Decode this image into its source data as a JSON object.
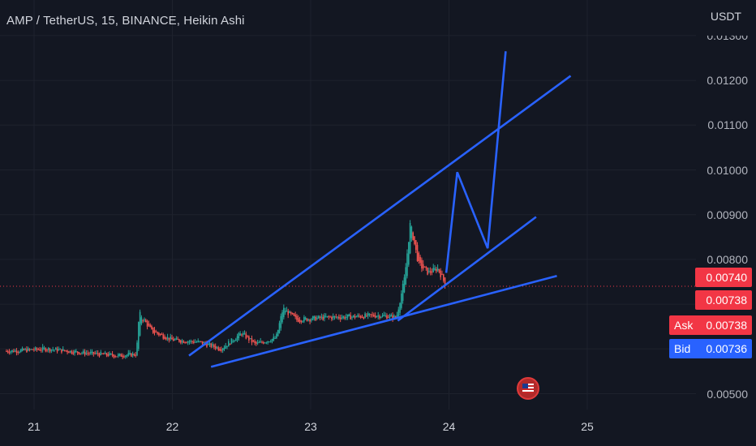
{
  "header": {
    "title": "AMP / TetherUS, 15, BINANCE, Heikin Ashi"
  },
  "axis": {
    "currency": "USDT"
  },
  "price_tags": {
    "last": "0.00740",
    "countdown_price": "0.00738",
    "ask_label": "Ask",
    "ask_value": "0.00738",
    "bid_label": "Bid",
    "bid_value": "0.00736"
  },
  "icons": {
    "event_flag": "us-flag-icon"
  },
  "colors": {
    "background": "#131722",
    "up": "#26a69a",
    "down": "#ef5350",
    "drawing": "#2962ff",
    "ask": "#f23645",
    "bid": "#2962ff"
  },
  "chart_data": {
    "type": "candlestick",
    "chart_style": "Heikin Ashi",
    "symbol": "AMP / TetherUS",
    "interval": "15",
    "exchange": "BINANCE",
    "ylim": [
      0.0047,
      0.013
    ],
    "price_ticks": [
      "0.01300",
      "0.01200",
      "0.01100",
      "0.01000",
      "0.00900",
      "0.00800",
      "0.00500"
    ],
    "date_ticks": [
      "21",
      "22",
      "23",
      "24",
      "25"
    ],
    "xlim": [
      20.8,
      25.2
    ],
    "grid": true,
    "series": [
      {
        "points": [
          [
            20.8,
            0.00595
          ],
          [
            21.1,
            0.006
          ],
          [
            21.4,
            0.0059
          ],
          [
            21.6,
            0.00585
          ],
          [
            21.74,
            0.00588
          ],
          [
            21.76,
            0.0068
          ],
          [
            21.85,
            0.0064
          ],
          [
            22.0,
            0.0062
          ],
          [
            22.2,
            0.00615
          ],
          [
            22.35,
            0.006
          ],
          [
            22.5,
            0.00635
          ],
          [
            22.6,
            0.0061
          ],
          [
            22.75,
            0.00625
          ],
          [
            22.8,
            0.0069
          ],
          [
            22.9,
            0.00665
          ],
          [
            23.1,
            0.0067
          ],
          [
            23.3,
            0.00672
          ],
          [
            23.5,
            0.00675
          ],
          [
            23.62,
            0.0067
          ],
          [
            23.68,
            0.0076
          ],
          [
            23.72,
            0.0088
          ],
          [
            23.78,
            0.0079
          ],
          [
            23.85,
            0.0077
          ],
          [
            23.92,
            0.0078
          ],
          [
            23.98,
            0.0074
          ]
        ]
      }
    ],
    "last_price": 0.0074,
    "drawings": [
      {
        "kind": "trendline",
        "points": [
          [
            22.12,
            0.00585
          ],
          [
            24.88,
            0.0121
          ]
        ]
      },
      {
        "kind": "trendline",
        "points": [
          [
            22.28,
            0.0056
          ],
          [
            24.78,
            0.00763
          ]
        ]
      },
      {
        "kind": "trendline",
        "points": [
          [
            23.63,
            0.00663
          ],
          [
            24.63,
            0.00895
          ]
        ]
      },
      {
        "kind": "path",
        "points": [
          [
            23.98,
            0.0077
          ],
          [
            24.06,
            0.00995
          ],
          [
            24.28,
            0.00825
          ],
          [
            24.41,
            0.01265
          ]
        ]
      }
    ]
  }
}
